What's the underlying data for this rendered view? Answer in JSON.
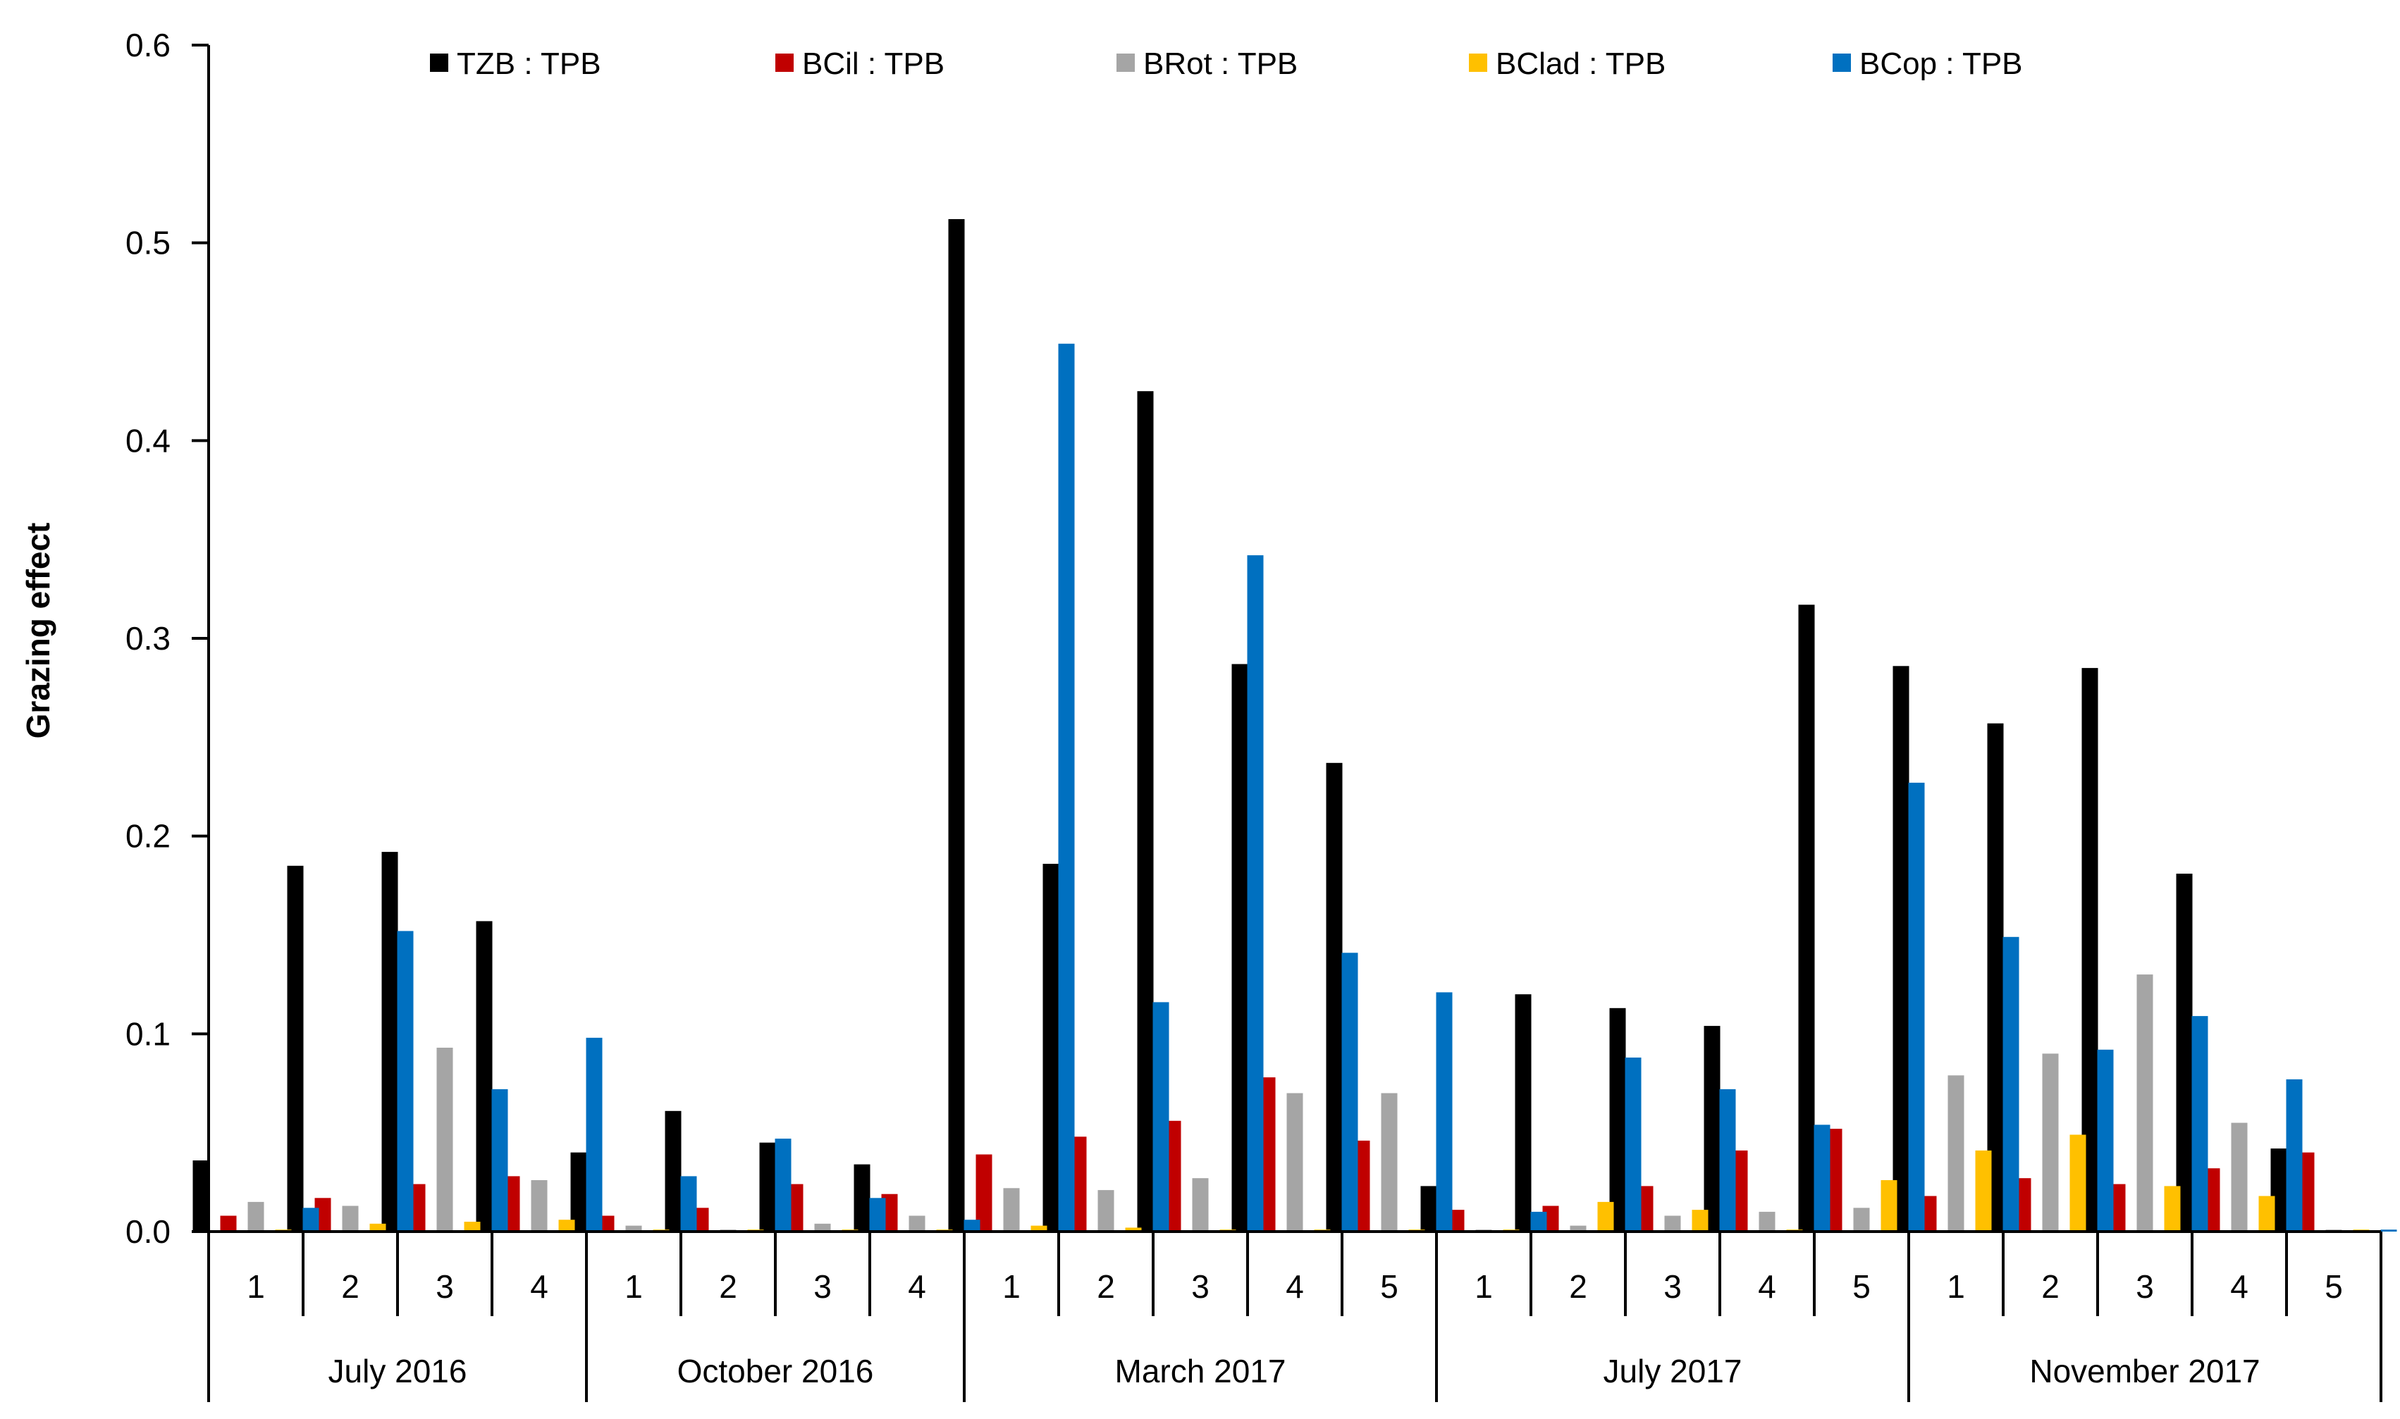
{
  "chart_data": {
    "type": "bar",
    "title": "",
    "xlabel": "",
    "ylabel": "Grazing effect",
    "ylim": [
      0,
      0.6
    ],
    "yticks": [
      0.0,
      0.1,
      0.2,
      0.3,
      0.4,
      0.5,
      0.6
    ],
    "ytick_labels": [
      "0.0",
      "0.1",
      "0.2",
      "0.3",
      "0.4",
      "0.5",
      "0.6"
    ],
    "legend_position": "top",
    "grid": false,
    "groups": [
      {
        "label": "July 2016",
        "categories": [
          "1",
          "2",
          "3",
          "4"
        ]
      },
      {
        "label": "October 2016",
        "categories": [
          "1",
          "2",
          "3",
          "4"
        ]
      },
      {
        "label": "March 2017",
        "categories": [
          "1",
          "2",
          "3",
          "4",
          "5"
        ]
      },
      {
        "label": "July 2017",
        "categories": [
          "1",
          "2",
          "3",
          "4",
          "5"
        ]
      },
      {
        "label": "November 2017",
        "categories": [
          "1",
          "2",
          "3",
          "4",
          "5"
        ]
      }
    ],
    "series": [
      {
        "name": "TZB : TPB",
        "color": "#000000",
        "values": [
          0.036,
          0.185,
          0.192,
          0.157,
          0.04,
          0.061,
          0.045,
          0.034,
          0.512,
          0.186,
          0.425,
          0.287,
          0.237,
          0.023,
          0.12,
          0.113,
          0.104,
          0.317,
          0.286,
          0.257,
          0.285,
          0.181,
          0.042
        ]
      },
      {
        "name": "BCil : TPB",
        "color": "#C00000",
        "values": [
          0.008,
          0.017,
          0.024,
          0.028,
          0.008,
          0.012,
          0.024,
          0.019,
          0.039,
          0.048,
          0.056,
          0.078,
          0.046,
          0.011,
          0.013,
          0.023,
          0.041,
          0.052,
          0.018,
          0.027,
          0.024,
          0.032,
          0.04
        ]
      },
      {
        "name": "BRot : TPB",
        "color": "#A5A5A5",
        "values": [
          0.015,
          0.013,
          0.093,
          0.026,
          0.003,
          0.001,
          0.004,
          0.008,
          0.022,
          0.021,
          0.027,
          0.07,
          0.07,
          0.001,
          0.003,
          0.008,
          0.01,
          0.012,
          0.079,
          0.09,
          0.13,
          0.055,
          0.001
        ]
      },
      {
        "name": "BClad : TPB",
        "color": "#FFC000",
        "values": [
          0.001,
          0.004,
          0.005,
          0.006,
          0.001,
          0.001,
          0.001,
          0.001,
          0.003,
          0.002,
          0.001,
          0.001,
          0.001,
          0.001,
          0.015,
          0.011,
          0.001,
          0.026,
          0.041,
          0.049,
          0.023,
          0.018,
          0.001
        ]
      },
      {
        "name": "BCop : TPB",
        "color": "#0070C0",
        "values": [
          0.012,
          0.152,
          0.072,
          0.098,
          0.028,
          0.047,
          0.017,
          0.006,
          0.449,
          0.116,
          0.342,
          0.141,
          0.121,
          0.01,
          0.088,
          0.072,
          0.054,
          0.227,
          0.149,
          0.092,
          0.109,
          0.077,
          0.001
        ]
      }
    ]
  }
}
